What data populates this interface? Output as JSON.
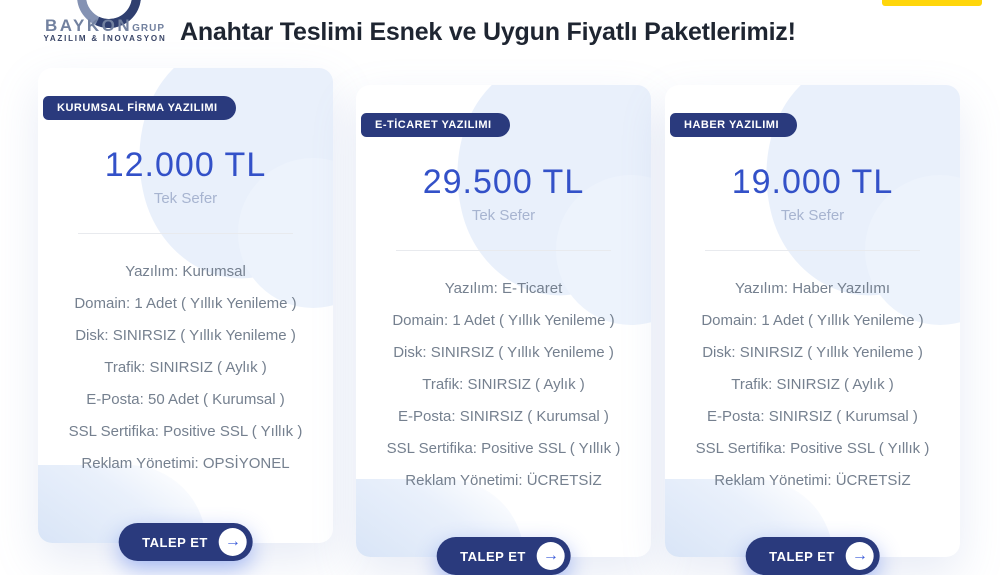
{
  "header": {
    "logo": {
      "brand": "BAYKON",
      "brand_suffix": "GRUP",
      "tagline": "YAZILIM & İNOVASYON"
    },
    "title": "Anahtar Teslimi Esnek ve Uygun Fiyatlı Paketlerimiz!"
  },
  "colors": {
    "badge_navy": "#2a3a7d",
    "price_blue": "#3351c8",
    "accent_yellow": "#ffd60b",
    "feature_gray": "#75808f",
    "blob_light_blue": "#e9f0fb"
  },
  "cards": [
    {
      "badge": "KURUMSAL FİRMA YAZILIMI",
      "price": "12.000 TL",
      "period": "Tek Sefer",
      "features": [
        "Yazılım: Kurumsal",
        "Domain: 1 Adet ( Yıllık Yenileme )",
        "Disk: SINIRSIZ ( Yıllık Yenileme )",
        "Trafik: SINIRSIZ ( Aylık )",
        "E-Posta: 50 Adet ( Kurumsal )",
        "SSL Sertifika: Positive SSL ( Yıllık )",
        "Reklam Yönetimi: OPSİYONEL"
      ],
      "button_label": "TALEP ET",
      "arrow_icon": "→"
    },
    {
      "badge": "E-TİCARET YAZILIMI",
      "price": "29.500 TL",
      "period": "Tek Sefer",
      "features": [
        "Yazılım: E-Ticaret",
        "Domain: 1 Adet ( Yıllık Yenileme )",
        "Disk: SINIRSIZ ( Yıllık Yenileme )",
        "Trafik: SINIRSIZ ( Aylık )",
        "E-Posta: SINIRSIZ ( Kurumsal )",
        "SSL Sertifika: Positive SSL ( Yıllık )",
        "Reklam Yönetimi: ÜCRETSİZ"
      ],
      "button_label": "TALEP ET",
      "arrow_icon": "→"
    },
    {
      "badge": "HABER YAZILIMI",
      "price": "19.000 TL",
      "period": "Tek Sefer",
      "features": [
        "Yazılım: Haber Yazılımı",
        "Domain: 1 Adet ( Yıllık Yenileme )",
        "Disk: SINIRSIZ ( Yıllık Yenileme )",
        "Trafik: SINIRSIZ ( Aylık )",
        "E-Posta: SINIRSIZ ( Kurumsal )",
        "SSL Sertifika: Positive SSL ( Yıllık )",
        "Reklam Yönetimi: ÜCRETSİZ"
      ],
      "button_label": "TALEP ET",
      "arrow_icon": "→"
    }
  ]
}
